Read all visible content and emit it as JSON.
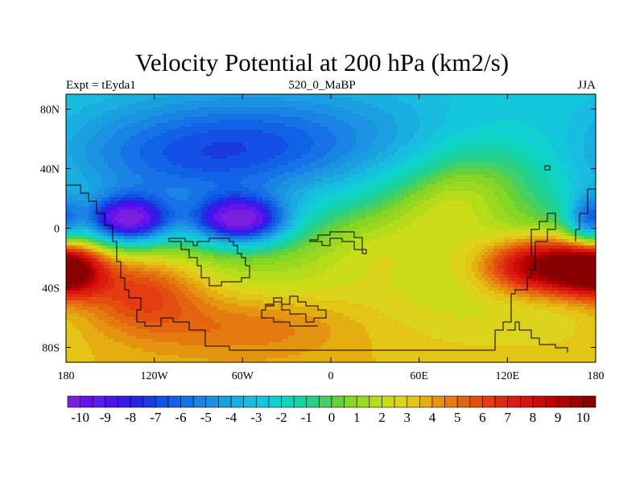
{
  "chart_data": {
    "type": "heatmap",
    "title": "Velocity Potential at 200 hPa (km2/s)",
    "subtitle_left": "Expt = tEyda1",
    "subtitle_center": "520_0_MaBP",
    "subtitle_right": "JJA",
    "x_range": [
      -180,
      180
    ],
    "y_range": [
      -90,
      90
    ],
    "x_ticks": [
      {
        "value": -180,
        "label": "180"
      },
      {
        "value": -120,
        "label": "120W"
      },
      {
        "value": -60,
        "label": "60W"
      },
      {
        "value": 0,
        "label": "0"
      },
      {
        "value": 60,
        "label": "60E"
      },
      {
        "value": 120,
        "label": "120E"
      },
      {
        "value": 180,
        "label": "180"
      }
    ],
    "y_ticks": [
      {
        "value": 80,
        "label": "80N"
      },
      {
        "value": 40,
        "label": "40N"
      },
      {
        "value": 0,
        "label": "0"
      },
      {
        "value": -40,
        "label": "40S"
      },
      {
        "value": -80,
        "label": "80S"
      }
    ],
    "colorbar": {
      "min": -10.5,
      "max": 10.5,
      "step": 0.5,
      "labels": [
        "-10",
        "-9",
        "-8",
        "-7",
        "-6",
        "-5",
        "-4",
        "-3",
        "-2",
        "-1",
        "0",
        "1",
        "2",
        "3",
        "4",
        "5",
        "6",
        "7",
        "8",
        "9",
        "10"
      ],
      "colors": [
        "#7a1fe0",
        "#6a10e8",
        "#5a1af0",
        "#4a14e8",
        "#3a18ee",
        "#2824e6",
        "#1a3ae0",
        "#1450e4",
        "#1062e6",
        "#1672e6",
        "#1a84e4",
        "#1c92e2",
        "#1aa0e0",
        "#1aaee0",
        "#18bce0",
        "#14c6dc",
        "#10d0d0",
        "#10d4bc",
        "#18d2a4",
        "#26d086",
        "#44d064",
        "#66d03a",
        "#86d624",
        "#9cd820",
        "#b4dc18",
        "#cadc18",
        "#dcd41c",
        "#e4c414",
        "#e4ae10",
        "#e49410",
        "#e47a10",
        "#e46410",
        "#e44e10",
        "#e43c10",
        "#e02a10",
        "#dc1c10",
        "#d81410",
        "#cc0a08",
        "#c00000",
        "#b00000",
        "#9c0000",
        "#880000"
      ]
    },
    "field_centers": [
      {
        "lon": -138,
        "lat": 5,
        "value": -10,
        "sx": 20,
        "sy": 11
      },
      {
        "lon": -62,
        "lat": 5,
        "value": -10,
        "sx": 22,
        "sy": 11
      },
      {
        "lon": -100,
        "lat": 38,
        "value": -4,
        "sx": 80,
        "sy": 28
      },
      {
        "lon": -30,
        "lat": 60,
        "value": -3,
        "sx": 90,
        "sy": 25
      },
      {
        "lon": 30,
        "lat": -15,
        "value": 2,
        "sx": 30,
        "sy": 20
      },
      {
        "lon": 80,
        "lat": 15,
        "value": 3,
        "sx": 30,
        "sy": 20
      },
      {
        "lon": 145,
        "lat": -25,
        "value": 10,
        "sx": 28,
        "sy": 13
      },
      {
        "lon": -180,
        "lat": -28,
        "value": 9,
        "sx": 18,
        "sy": 12
      },
      {
        "lon": -130,
        "lat": -40,
        "value": 5,
        "sx": 30,
        "sy": 18
      },
      {
        "lon": 110,
        "lat": 40,
        "value": 2,
        "sx": 30,
        "sy": 18
      },
      {
        "lon": 175,
        "lat": 5,
        "value": -5,
        "sx": 10,
        "sy": 12
      },
      {
        "lon": -60,
        "lat": -65,
        "value": 3,
        "sx": 60,
        "sy": 16
      }
    ]
  }
}
